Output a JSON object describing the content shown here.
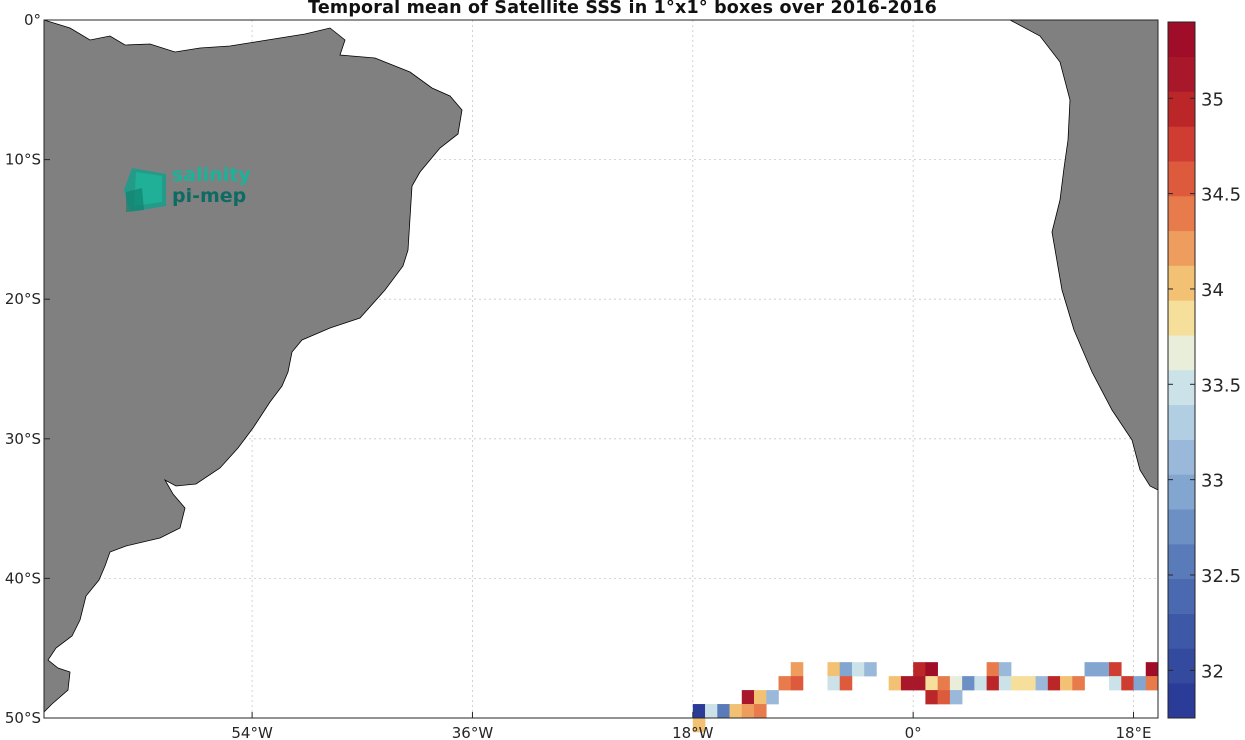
{
  "title": "Temporal mean of Satellite SSS in 1°x1° boxes over 2016-2016",
  "logo": {
    "line1": "salinity",
    "line2": "pi-mep"
  },
  "chart_data": {
    "type": "heatmap",
    "title": "Temporal mean of Satellite SSS in 1°x1° boxes over 2016-2016",
    "xlabel": "",
    "ylabel": "",
    "lon_range": [
      -71,
      20
    ],
    "lat_range": [
      -50,
      0
    ],
    "x_ticks": [
      -54,
      -36,
      -18,
      0,
      18
    ],
    "x_tick_labels": [
      "54°W",
      "36°W",
      "18°W",
      "0°",
      "18°E"
    ],
    "y_ticks": [
      0,
      -10,
      -20,
      -30,
      -40,
      -50
    ],
    "y_tick_labels": [
      "0°",
      "10°S",
      "20°S",
      "30°S",
      "40°S",
      "50°S"
    ],
    "grid": true,
    "land_color": "#808080",
    "colorbar": {
      "range": [
        31.75,
        35.4
      ],
      "ticks": [
        32,
        32.5,
        33,
        33.5,
        34,
        34.5,
        35
      ],
      "tick_labels": [
        "32",
        "32.5",
        "33",
        "33.5",
        "34",
        "34.5",
        "35"
      ],
      "colors": [
        "#2a3b98",
        "#334a9f",
        "#3e58a8",
        "#4b69b1",
        "#5a7bba",
        "#6c8fc4",
        "#82a6cf",
        "#9ab9da",
        "#b1cee2",
        "#cbe3e8",
        "#e8eed9",
        "#f5df9a",
        "#f3c173",
        "#ee9d5f",
        "#e87b4c",
        "#dd5a3c",
        "#cf3c32",
        "#bb2628",
        "#a8182a",
        "#a00d28"
      ]
    },
    "cells": [
      {
        "lon": -10,
        "lat": -46,
        "value": 34.3
      },
      {
        "lon": -7,
        "lat": -46,
        "value": 34.0
      },
      {
        "lon": -6,
        "lat": -46,
        "value": 33.0
      },
      {
        "lon": -5,
        "lat": -46,
        "value": 33.5
      },
      {
        "lon": -4,
        "lat": -46,
        "value": 33.2
      },
      {
        "lon": 0,
        "lat": -46,
        "value": 34.9
      },
      {
        "lon": 1,
        "lat": -46,
        "value": 35.3
      },
      {
        "lon": 6,
        "lat": -46,
        "value": 34.4
      },
      {
        "lon": 7,
        "lat": -46,
        "value": 33.1
      },
      {
        "lon": 14,
        "lat": -46,
        "value": 33.0
      },
      {
        "lon": 15,
        "lat": -46,
        "value": 33.0
      },
      {
        "lon": 16,
        "lat": -46,
        "value": 34.8
      },
      {
        "lon": 19,
        "lat": -46,
        "value": 35.3
      },
      {
        "lon": -11,
        "lat": -47,
        "value": 34.4
      },
      {
        "lon": -10,
        "lat": -47,
        "value": 34.5
      },
      {
        "lon": -7,
        "lat": -47,
        "value": 33.5
      },
      {
        "lon": -6,
        "lat": -47,
        "value": 34.6
      },
      {
        "lon": -2,
        "lat": -47,
        "value": 34.0
      },
      {
        "lon": -1,
        "lat": -47,
        "value": 35.1
      },
      {
        "lon": 0,
        "lat": -47,
        "value": 35.1
      },
      {
        "lon": 1,
        "lat": -47,
        "value": 33.8
      },
      {
        "lon": 2,
        "lat": -47,
        "value": 34.4
      },
      {
        "lon": 3,
        "lat": -47,
        "value": 33.6
      },
      {
        "lon": 4,
        "lat": -47,
        "value": 32.8
      },
      {
        "lon": 5,
        "lat": -47,
        "value": 33.5
      },
      {
        "lon": 6,
        "lat": -47,
        "value": 34.9
      },
      {
        "lon": 7,
        "lat": -47,
        "value": 33.4
      },
      {
        "lon": 8,
        "lat": -47,
        "value": 33.8
      },
      {
        "lon": 9,
        "lat": -47,
        "value": 33.8
      },
      {
        "lon": 10,
        "lat": -47,
        "value": 33.2
      },
      {
        "lon": 11,
        "lat": -47,
        "value": 35.0
      },
      {
        "lon": 12,
        "lat": -47,
        "value": 34.1
      },
      {
        "lon": 13,
        "lat": -47,
        "value": 34.4
      },
      {
        "lon": 16,
        "lat": -47,
        "value": 33.4
      },
      {
        "lon": 17,
        "lat": -47,
        "value": 34.7
      },
      {
        "lon": 18,
        "lat": -47,
        "value": 33.0
      },
      {
        "lon": 19,
        "lat": -47,
        "value": 34.4
      },
      {
        "lon": -14,
        "lat": -48,
        "value": 35.2
      },
      {
        "lon": -13,
        "lat": -48,
        "value": 34.0
      },
      {
        "lon": -12,
        "lat": -48,
        "value": 33.2
      },
      {
        "lon": 1,
        "lat": -48,
        "value": 35.0
      },
      {
        "lon": 2,
        "lat": -48,
        "value": 34.6
      },
      {
        "lon": 3,
        "lat": -48,
        "value": 33.2
      },
      {
        "lon": -18,
        "lat": -49,
        "value": 31.9
      },
      {
        "lon": -17,
        "lat": -49,
        "value": 33.5
      },
      {
        "lon": -16,
        "lat": -49,
        "value": 32.6
      },
      {
        "lon": -15,
        "lat": -49,
        "value": 34.1
      },
      {
        "lon": -14,
        "lat": -49,
        "value": 34.2
      },
      {
        "lon": -13,
        "lat": -49,
        "value": 34.4
      },
      {
        "lon": -18,
        "lat": -50,
        "value": 34.1
      }
    ]
  }
}
